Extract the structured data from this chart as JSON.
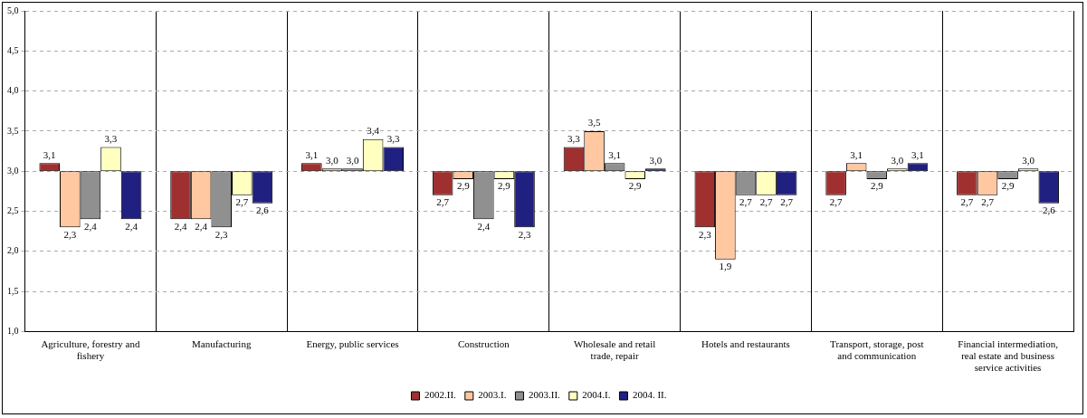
{
  "chart_data": {
    "type": "bar",
    "categories": [
      "Agriculture, forestry and fishery",
      "Manufacturing",
      "Energy, public services",
      "Construction",
      "Wholesale and retail trade, repair",
      "Hotels and restaurants",
      "Transport, storage, post and communication",
      "Financial intermediation, real estate and business service activities"
    ],
    "series": [
      {
        "name": "2002.II.",
        "color": "#a0302f",
        "base": [
          3,
          3,
          3,
          3,
          3,
          3,
          3,
          3
        ],
        "values": [
          0.1,
          -0.6,
          0.1,
          -0.3,
          0.3,
          -0.7,
          -0.3,
          -0.3
        ],
        "value_labels": [
          "3,1",
          "2,4",
          "3,1",
          "2,7",
          "3,3",
          "2,3",
          "2,7",
          "2,7"
        ]
      },
      {
        "name": "2003.I.",
        "color": "#ffc8a0",
        "base": [
          3,
          3,
          3,
          3,
          3,
          3,
          3,
          3
        ],
        "values": [
          -0.7,
          -0.6,
          0,
          -0.1,
          0.5,
          -1.1,
          0.1,
          -0.3
        ],
        "value_labels": [
          "2,3",
          "2,4",
          "3,0",
          "2,9",
          "3,5",
          "1,9",
          "3,1",
          "2,7"
        ]
      },
      {
        "name": "2003.II.",
        "color": "#909090",
        "base": [
          3,
          3,
          3,
          3,
          3,
          3,
          3,
          3
        ],
        "values": [
          -0.6,
          -0.7,
          0,
          -0.6,
          0.1,
          -0.3,
          -0.1,
          -0.1
        ],
        "value_labels": [
          "2,4",
          "2,3",
          "3,0",
          "2,4",
          "3,1",
          "2,7",
          "2,9",
          "2,9"
        ]
      },
      {
        "name": "2004.I.",
        "color": "#ffffc0",
        "base": [
          3,
          3,
          3,
          3,
          3,
          3,
          3,
          3
        ],
        "values": [
          0.3,
          -0.3,
          0.4,
          -0.1,
          -0.1,
          -0.3,
          0,
          0
        ],
        "value_labels": [
          "3,3",
          "2,7",
          "3,4",
          "2,9",
          "2,9",
          "2,7",
          "3,0",
          "3,0"
        ]
      },
      {
        "name": "2004. II.",
        "color": "#202080",
        "base": [
          3,
          3,
          3,
          3,
          3,
          3,
          3,
          3
        ],
        "values": [
          -0.6,
          -0.4,
          0.3,
          -0.7,
          0,
          -0.3,
          0.1,
          -0.4
        ],
        "value_labels": [
          "2,4",
          "2,6",
          "3,3",
          "2,3",
          "3,0",
          "2,7",
          "3,1",
          "2,6"
        ]
      }
    ],
    "ylim": [
      1,
      5
    ],
    "yticks": [
      {
        "value": 1,
        "label": "1,0"
      },
      {
        "value": 1.5,
        "label": "1,5"
      },
      {
        "value": 2,
        "label": "2,0"
      },
      {
        "value": 2.5,
        "label": "2,5"
      },
      {
        "value": 3,
        "label": "3,0"
      },
      {
        "value": 3.5,
        "label": "3,5"
      },
      {
        "value": 4,
        "label": "4,0"
      },
      {
        "value": 4.5,
        "label": "4,5"
      },
      {
        "value": 5,
        "label": "5,0"
      }
    ],
    "grid": true,
    "legend": "bottom"
  }
}
